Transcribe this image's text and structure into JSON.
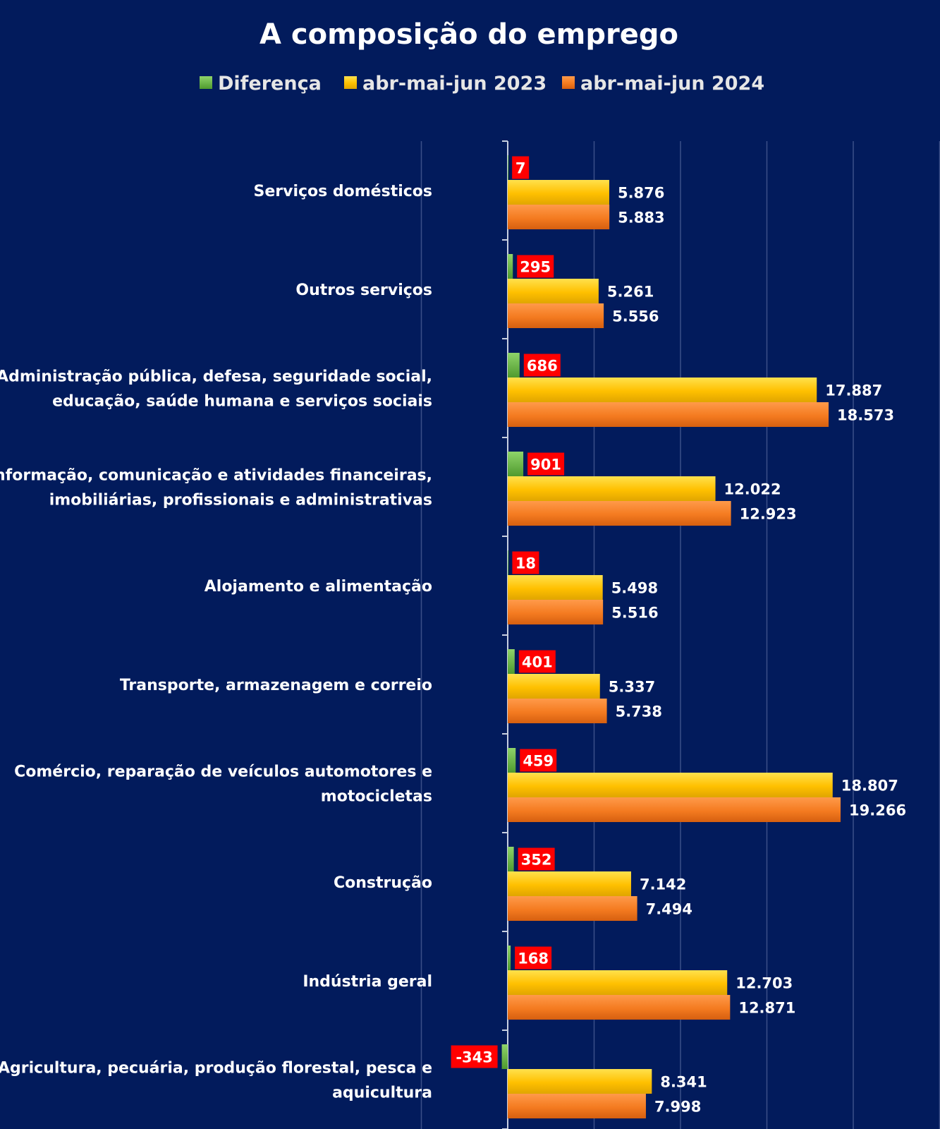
{
  "colors": {
    "background": "#021b5c",
    "diferenca": "#6dbb45",
    "s2023": "#ffc000",
    "s2024": "#f47b20",
    "diff_label_bg": "#ff0000",
    "gridline": "#3b4f88"
  },
  "chart_data": {
    "type": "bar",
    "orientation": "horizontal",
    "title": "A composição do emprego",
    "legend": {
      "placement": "top",
      "entries": [
        "Diferença",
        "abr-mai-jun 2023",
        "abr-mai-jun 2024"
      ]
    },
    "grid": true,
    "xlim": [
      -5000,
      25000
    ],
    "categories": [
      "Serviços domésticos",
      "Outros serviços",
      "Administração pública, defesa, seguridade social, educação, saúde humana e serviços sociais",
      "Informação, comunicação e atividades financeiras, imobiliárias, profissionais e administrativas",
      "Alojamento e alimentação",
      "Transporte, armazenagem e correio",
      "Comércio, reparação de veículos automotores e motocicletas",
      "Construção",
      "Indústria geral",
      "Agricultura, pecuária, produção florestal, pesca e aquicultura"
    ],
    "category_lines": [
      [
        "Serviços domésticos"
      ],
      [
        "Outros serviços"
      ],
      [
        "Administração pública, defesa, seguridade social,",
        "educação, saúde humana e serviços sociais"
      ],
      [
        "Informação, comunicação e atividades financeiras,",
        "imobiliárias, profissionais e administrativas"
      ],
      [
        "Alojamento e alimentação"
      ],
      [
        "Transporte, armazenagem e correio"
      ],
      [
        "Comércio, reparação de veículos automotores e",
        "motocicletas"
      ],
      [
        "Construção"
      ],
      [
        "Indústria geral"
      ],
      [
        "Agricultura, pecuária, produção florestal, pesca e",
        "aquicultura"
      ]
    ],
    "series": [
      {
        "name": "Diferença",
        "values": [
          7,
          295,
          686,
          901,
          18,
          401,
          459,
          352,
          168,
          -343
        ],
        "labels": [
          "7",
          "295",
          "686",
          "901",
          "18",
          "401",
          "459",
          "352",
          "168",
          "-343"
        ]
      },
      {
        "name": "abr-mai-jun 2023",
        "values": [
          5876,
          5261,
          17887,
          12022,
          5498,
          5337,
          18807,
          7142,
          12703,
          8341
        ],
        "labels": [
          "5.876",
          "5.261",
          "17.887",
          "12.022",
          "5.498",
          "5.337",
          "18.807",
          "7.142",
          "12.703",
          "8.341"
        ]
      },
      {
        "name": "abr-mai-jun 2024",
        "values": [
          5883,
          5556,
          18573,
          12923,
          5516,
          5738,
          19266,
          7494,
          12871,
          7998
        ],
        "labels": [
          "5.883",
          "5.556",
          "18.573",
          "12.923",
          "5.516",
          "5.738",
          "19.266",
          "7.494",
          "12.871",
          "7.998"
        ]
      }
    ]
  }
}
